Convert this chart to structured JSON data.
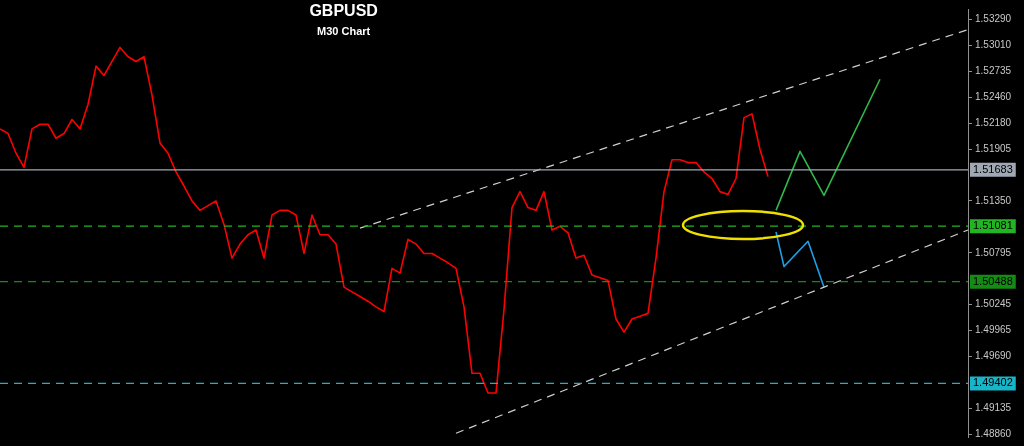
{
  "chart_data": {
    "type": "line",
    "title": "GBPUSD",
    "subtitle": "M30 Chart",
    "categories": [
      null,
      null,
      null,
      null,
      null,
      null,
      null,
      null,
      null,
      null,
      null,
      null,
      null,
      null,
      null,
      null,
      null,
      null,
      null,
      null,
      null,
      null,
      null,
      null,
      null,
      null,
      null,
      null,
      null,
      null,
      null,
      null,
      null,
      null,
      null,
      null,
      null,
      null,
      null,
      null,
      null,
      null,
      null,
      null,
      null,
      null,
      null,
      null,
      null,
      null,
      null,
      null,
      null,
      null,
      null,
      null,
      null,
      null,
      null,
      null,
      null,
      null,
      null,
      null,
      null,
      null,
      null,
      null,
      null,
      null,
      null,
      null,
      null,
      null,
      null,
      null,
      null,
      null,
      null,
      null,
      null,
      null,
      null,
      null,
      null,
      null,
      null,
      null,
      null,
      null,
      null,
      null,
      null,
      null,
      null,
      null,
      null,
      null,
      null,
      null,
      null,
      null,
      null,
      null,
      null,
      null,
      null,
      null,
      null,
      null,
      null,
      null,
      null,
      null,
      null,
      null,
      null,
      null,
      null,
      null,
      null,
      null
    ],
    "series": [
      {
        "color": "#ff0000",
        "values": [
          1.5212,
          1.5207,
          1.5186,
          1.5171,
          1.5212,
          1.5217,
          1.5217,
          1.5202,
          1.5207,
          1.5222,
          1.5212,
          1.5238,
          1.5279,
          1.5269,
          1.5284,
          1.5299,
          1.5289,
          1.5284,
          1.5289,
          1.5248,
          1.5197,
          1.5186,
          1.5166,
          1.5151,
          1.5135,
          1.5125,
          1.513,
          1.5135,
          1.511,
          1.5074,
          1.5089,
          1.5099,
          1.5104,
          1.5074,
          1.512,
          1.5125,
          1.5125,
          1.512,
          1.5079,
          1.512,
          1.5099,
          1.5099,
          1.5089,
          1.5043,
          1.5038,
          1.5033,
          1.5028,
          1.5022,
          1.5017,
          1.5063,
          1.5058,
          1.5094,
          1.5089,
          1.5079,
          1.5079,
          1.5074,
          1.5069,
          1.5063,
          1.5022,
          1.4951,
          1.4951,
          1.493,
          1.493,
          1.5019,
          1.5128,
          1.5145,
          1.5128,
          1.5125,
          1.5145,
          1.5104,
          1.5108,
          1.5101,
          1.5074,
          1.5077,
          1.5056,
          1.5053,
          1.505,
          1.5009,
          1.4995,
          1.5009,
          1.5012,
          1.5015,
          1.5074,
          1.5145,
          1.5179,
          1.5179,
          1.5176,
          1.5176,
          1.5166,
          1.5159,
          1.5145,
          1.5142,
          1.5159,
          1.5224,
          1.5228,
          1.519,
          1.5161,
          null,
          null,
          null,
          null,
          null,
          null,
          null,
          null,
          null,
          null,
          null,
          null,
          null,
          null,
          null,
          null,
          null,
          null,
          null,
          null,
          null,
          null,
          null,
          null,
          null
        ]
      },
      {
        "color": "#d0d0d0",
        "line_style": "dashed",
        "values": [
          null,
          null,
          null,
          null,
          null,
          null,
          null,
          null,
          null,
          null,
          null,
          null,
          null,
          null,
          null,
          null,
          null,
          null,
          null,
          null,
          null,
          null,
          null,
          null,
          null,
          null,
          null,
          null,
          null,
          null,
          null,
          null,
          null,
          null,
          null,
          null,
          null,
          null,
          null,
          null,
          null,
          null,
          null,
          null,
          null,
          1.5106,
          null,
          null,
          null,
          null,
          null,
          null,
          null,
          null,
          null,
          null,
          null,
          null,
          null,
          null,
          null,
          null,
          null,
          null,
          null,
          null,
          null,
          null,
          null,
          null,
          null,
          null,
          null,
          null,
          null,
          null,
          null,
          null,
          null,
          null,
          null,
          null,
          null,
          null,
          null,
          null,
          null,
          null,
          null,
          null,
          null,
          null,
          null,
          null,
          null,
          null,
          null,
          null,
          null,
          null,
          null,
          null,
          null,
          null,
          null,
          null,
          null,
          null,
          null,
          null,
          null,
          null,
          null,
          null,
          null,
          null,
          null,
          null,
          null,
          null,
          null,
          1.5318
        ]
      },
      {
        "color": "#d0d0d0",
        "line_style": "dashed",
        "values": [
          null,
          null,
          null,
          null,
          null,
          null,
          null,
          null,
          null,
          null,
          null,
          null,
          null,
          null,
          null,
          null,
          null,
          null,
          null,
          null,
          null,
          null,
          null,
          null,
          null,
          null,
          null,
          null,
          null,
          null,
          null,
          null,
          null,
          null,
          null,
          null,
          null,
          null,
          null,
          null,
          null,
          null,
          null,
          null,
          null,
          null,
          null,
          null,
          null,
          null,
          null,
          null,
          null,
          null,
          null,
          null,
          null,
          1.4887,
          null,
          null,
          null,
          null,
          null,
          null,
          null,
          null,
          null,
          null,
          null,
          null,
          null,
          null,
          null,
          null,
          null,
          null,
          null,
          null,
          null,
          null,
          null,
          null,
          null,
          null,
          null,
          null,
          null,
          null,
          null,
          null,
          null,
          null,
          null,
          null,
          null,
          null,
          null,
          null,
          null,
          null,
          null,
          null,
          null,
          null,
          null,
          null,
          null,
          null,
          null,
          null,
          null,
          null,
          null,
          null,
          null,
          null,
          null,
          null,
          null,
          null,
          null,
          1.5104
        ]
      },
      {
        "color": "#2eb84a",
        "values": [
          null,
          null,
          null,
          null,
          null,
          null,
          null,
          null,
          null,
          null,
          null,
          null,
          null,
          null,
          null,
          null,
          null,
          null,
          null,
          null,
          null,
          null,
          null,
          null,
          null,
          null,
          null,
          null,
          null,
          null,
          null,
          null,
          null,
          null,
          null,
          null,
          null,
          null,
          null,
          null,
          null,
          null,
          null,
          null,
          null,
          null,
          null,
          null,
          null,
          null,
          null,
          null,
          null,
          null,
          null,
          null,
          null,
          null,
          null,
          null,
          null,
          null,
          null,
          null,
          null,
          null,
          null,
          null,
          null,
          null,
          null,
          null,
          null,
          null,
          null,
          null,
          null,
          null,
          null,
          null,
          null,
          null,
          null,
          null,
          null,
          null,
          null,
          null,
          null,
          null,
          null,
          null,
          null,
          null,
          null,
          null,
          null,
          1.5125,
          null,
          null,
          1.5188,
          null,
          null,
          1.5141,
          null,
          null,
          null,
          null,
          null,
          null,
          1.5265,
          null,
          null,
          null,
          null,
          null,
          null,
          null,
          null,
          null,
          null,
          null
        ]
      },
      {
        "color": "#1ea0e6",
        "values": [
          null,
          null,
          null,
          null,
          null,
          null,
          null,
          null,
          null,
          null,
          null,
          null,
          null,
          null,
          null,
          null,
          null,
          null,
          null,
          null,
          null,
          null,
          null,
          null,
          null,
          null,
          null,
          null,
          null,
          null,
          null,
          null,
          null,
          null,
          null,
          null,
          null,
          null,
          null,
          null,
          null,
          null,
          null,
          null,
          null,
          null,
          null,
          null,
          null,
          null,
          null,
          null,
          null,
          null,
          null,
          null,
          null,
          null,
          null,
          null,
          null,
          null,
          null,
          null,
          null,
          null,
          null,
          null,
          null,
          null,
          null,
          null,
          null,
          null,
          null,
          null,
          null,
          null,
          null,
          null,
          null,
          null,
          null,
          null,
          null,
          null,
          null,
          null,
          null,
          null,
          null,
          null,
          null,
          null,
          null,
          null,
          null,
          1.5102,
          1.5065,
          null,
          null,
          1.5092,
          null,
          1.5043,
          null,
          null,
          null,
          null,
          null,
          null,
          null,
          null,
          null,
          null,
          null,
          null,
          null,
          null,
          null,
          null,
          null,
          null
        ]
      }
    ],
    "ylim": [
      1.4883,
      1.534
    ],
    "yticks": [
      {
        "value": 1.5329,
        "label": "1.53290"
      },
      {
        "value": 1.5301,
        "label": "1.53010"
      },
      {
        "value": 1.52735,
        "label": "1.52735"
      },
      {
        "value": 1.5246,
        "label": "1.52460"
      },
      {
        "value": 1.5218,
        "label": "1.52180"
      },
      {
        "value": 1.51905,
        "label": "1.51905"
      },
      {
        "value": 1.5135,
        "label": "1.51350"
      },
      {
        "value": 1.50795,
        "label": "1.50795"
      },
      {
        "value": 1.50245,
        "label": "1.50245"
      },
      {
        "value": 1.49965,
        "label": "1.49965"
      },
      {
        "value": 1.4969,
        "label": "1.49690"
      },
      {
        "value": 1.49135,
        "label": "1.49135"
      },
      {
        "value": 1.4886,
        "label": "1.48860"
      }
    ],
    "ref_lines": [
      {
        "axis": "y",
        "value": 1.51683,
        "label": "1.51683",
        "color": "#a0a8b4",
        "line_style": "solid"
      },
      {
        "axis": "y",
        "value": 1.51081,
        "label": "1.51081",
        "color": "#22b422",
        "line_style": "dashed"
      },
      {
        "axis": "y",
        "value": 1.50488,
        "label": "1.50488",
        "color": "#148c14",
        "line_style": "dashed"
      },
      {
        "axis": "y",
        "value": 1.49402,
        "label": "1.49402",
        "color": "#18b4c8",
        "line_style": "dashed"
      }
    ],
    "tick_labels": "y",
    "grid": false
  }
}
